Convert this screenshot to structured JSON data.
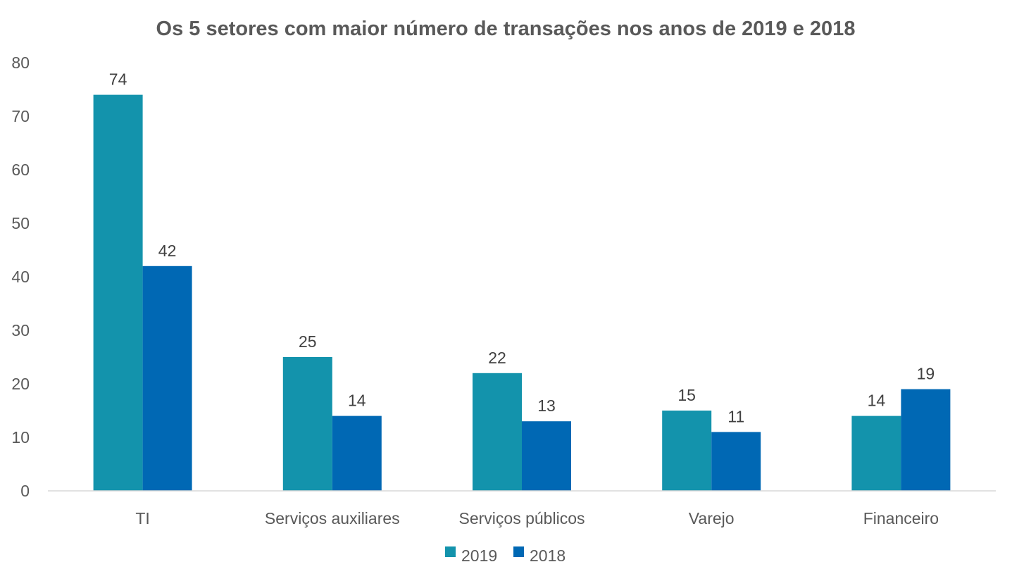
{
  "chart_data": {
    "type": "bar",
    "title": "Os 5 setores com maior número de transações nos anos de 2019 e 2018",
    "categories": [
      "TI",
      "Serviços auxiliares",
      "Serviços públicos",
      "Varejo",
      "Financeiro"
    ],
    "series": [
      {
        "name": "2019",
        "values": [
          74,
          25,
          22,
          15,
          14
        ],
        "color": "#1393AC"
      },
      {
        "name": "2018",
        "values": [
          42,
          14,
          13,
          11,
          19
        ],
        "color": "#0068B4"
      }
    ],
    "ylim": [
      0,
      80
    ],
    "yticks": [
      "0",
      "10",
      "20",
      "30",
      "40",
      "50",
      "60",
      "70",
      "80"
    ],
    "xlabel": "",
    "ylabel": "",
    "grid": false,
    "legend_position": "bottom",
    "data_labels": true
  },
  "colors": {
    "text": "#595959",
    "data_label": "#404040",
    "axis": "#d9d9d9",
    "background": "#ffffff"
  }
}
